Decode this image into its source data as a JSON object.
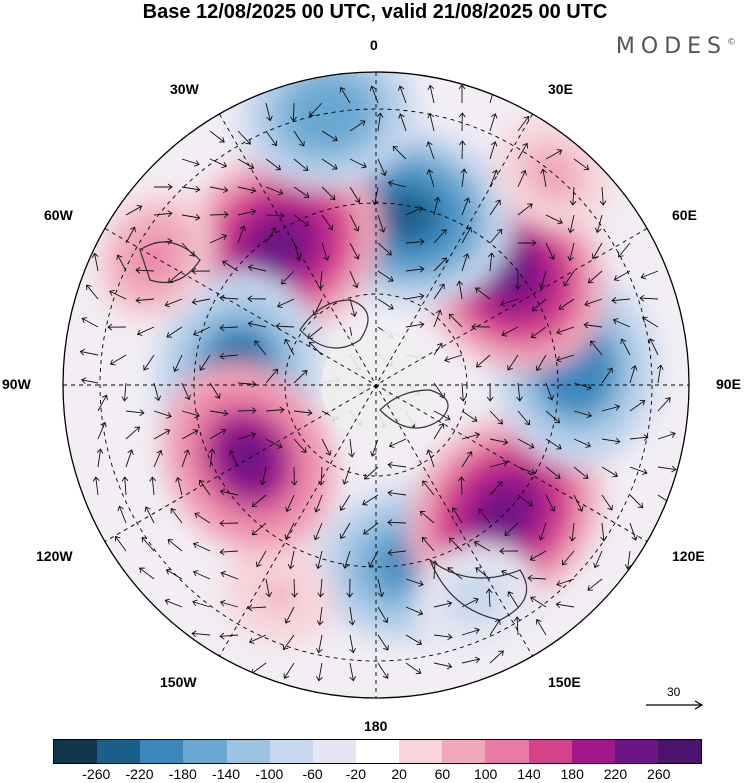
{
  "title": "Base 12/08/2025 00 UTC, valid 21/08/2025 00 UTC",
  "logo": "MODES",
  "logo_mark": "©",
  "longitudes": {
    "top": "0",
    "top_right": "30E",
    "right_upper": "60E",
    "right": "90E",
    "right_lower": "120E",
    "bottom_right": "150E",
    "bottom": "180",
    "bottom_left": "150W",
    "left_lower": "120W",
    "left": "90W",
    "left_upper": "60W",
    "top_left": "30W"
  },
  "reference_vector": "30",
  "colorbar": {
    "colors": [
      "#12364f",
      "#1a5f8a",
      "#3a88bd",
      "#6aa8d2",
      "#9cc3e2",
      "#c8d8ee",
      "#e6e6f2",
      "#ffffff",
      "#f7d5dc",
      "#f0a8bb",
      "#e97aa4",
      "#d6418c",
      "#a2178a",
      "#6c1585",
      "#4a146f"
    ],
    "labels": [
      "-260",
      "-220",
      "-180",
      "-140",
      "-100",
      "-60",
      "-20",
      "20",
      "60",
      "100",
      "140",
      "180",
      "220",
      "260"
    ]
  },
  "anomalies": [
    {
      "value": -200,
      "lon": 10,
      "r": 0.58
    },
    {
      "value": 60,
      "lon": 335,
      "r": 0.74
    },
    {
      "value": 240,
      "lon": 45,
      "r": 0.58
    },
    {
      "value": -220,
      "lon": 95,
      "r": 0.64
    },
    {
      "value": 240,
      "lon": 130,
      "r": 0.56
    },
    {
      "value": -250,
      "lon": 170,
      "r": 0.55
    },
    {
      "value": 250,
      "lon": 215,
      "r": 0.54
    },
    {
      "value": -230,
      "lon": 265,
      "r": 0.44
    },
    {
      "value": 220,
      "lon": 300,
      "r": 0.47
    },
    {
      "value": -180,
      "lon": 190,
      "r": 0.88
    },
    {
      "value": 100,
      "lon": 240,
      "r": 0.82
    },
    {
      "value": 80,
      "lon": 140,
      "r": 0.88
    },
    {
      "value": -80,
      "lon": 25,
      "r": 0.75
    }
  ]
}
